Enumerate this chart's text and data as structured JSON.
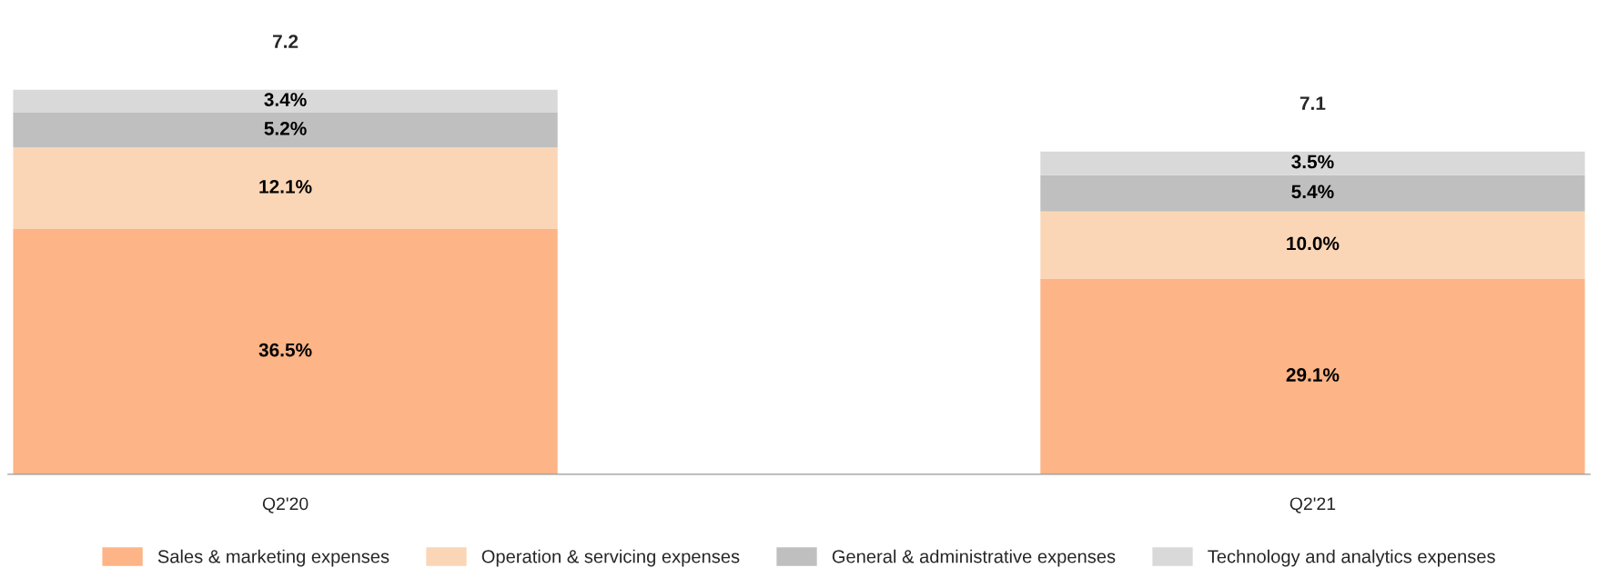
{
  "chart_data": {
    "type": "bar",
    "stacked": true,
    "categories": [
      "Q2'20",
      "Q2'21"
    ],
    "series": [
      {
        "name": "Sales & marketing expenses",
        "color": "#fdb486",
        "values": [
          36.5,
          29.1
        ],
        "value_labels": [
          "36.5%",
          "29.1%"
        ]
      },
      {
        "name": "Operation & servicing expenses",
        "color": "#fbd6b6",
        "values": [
          12.1,
          10.0
        ],
        "value_labels": [
          "12.1%",
          "10.0%"
        ]
      },
      {
        "name": "General & administrative expenses",
        "color": "#bfbfbf",
        "values": [
          5.2,
          5.4
        ],
        "value_labels": [
          "5.2%",
          "5.4%"
        ]
      },
      {
        "name": "Technology and analytics expenses",
        "color": "#d9d9d9",
        "values": [
          3.4,
          3.5
        ],
        "value_labels": [
          "3.4%",
          "3.5%"
        ]
      }
    ],
    "annotations": [
      {
        "text": "7.2",
        "x": "Q2'20",
        "y": 57.2
      },
      {
        "text": "7.1",
        "x": "Q2'21",
        "y": 48.0
      }
    ],
    "tick_labels": "x",
    "grid": false,
    "legend": "bottom"
  }
}
